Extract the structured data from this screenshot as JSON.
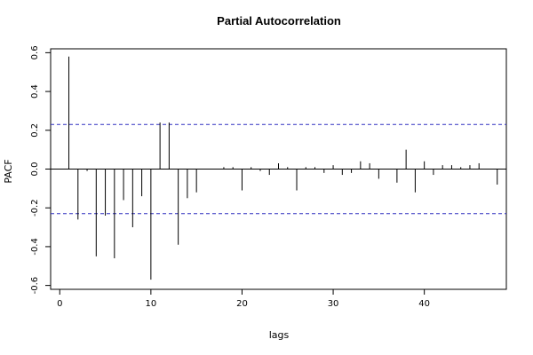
{
  "chart_data": {
    "type": "bar",
    "title": "Partial Autocorrelation",
    "xlabel": "lags",
    "ylabel": "PACF",
    "xlim": [
      -1,
      49
    ],
    "ylim": [
      -0.62,
      0.62
    ],
    "x_ticks": [
      0,
      10,
      20,
      30,
      40
    ],
    "y_ticks": [
      -0.6,
      -0.4,
      -0.2,
      0.0,
      0.2,
      0.4,
      0.6
    ],
    "y_tick_labels": [
      "-0.6",
      "-0.4",
      "-0.2",
      "0.0",
      "0.2",
      "0.4",
      "0.6"
    ],
    "confidence_bound": 0.23,
    "confidence_color": "#3030c0",
    "grid": false,
    "lags": [
      1,
      2,
      3,
      4,
      5,
      6,
      7,
      8,
      9,
      10,
      11,
      12,
      13,
      14,
      15,
      16,
      17,
      18,
      19,
      20,
      21,
      22,
      23,
      24,
      25,
      26,
      27,
      28,
      29,
      30,
      31,
      32,
      33,
      34,
      35,
      36,
      37,
      38,
      39,
      40,
      41,
      42,
      43,
      44,
      45,
      46,
      47,
      48
    ],
    "values": [
      0.58,
      -0.26,
      -0.01,
      -0.45,
      -0.24,
      -0.46,
      -0.16,
      -0.3,
      -0.14,
      -0.57,
      0.24,
      0.24,
      -0.39,
      -0.15,
      -0.12,
      0.0,
      0.0,
      0.01,
      0.01,
      -0.11,
      0.01,
      -0.01,
      -0.03,
      0.03,
      0.01,
      -0.11,
      0.01,
      0.01,
      -0.02,
      0.02,
      -0.03,
      -0.02,
      0.04,
      0.03,
      -0.05,
      0.0,
      -0.07,
      0.1,
      -0.12,
      0.04,
      -0.03,
      0.02,
      0.02,
      0.01,
      0.02,
      0.03,
      0.0,
      -0.08
    ]
  }
}
